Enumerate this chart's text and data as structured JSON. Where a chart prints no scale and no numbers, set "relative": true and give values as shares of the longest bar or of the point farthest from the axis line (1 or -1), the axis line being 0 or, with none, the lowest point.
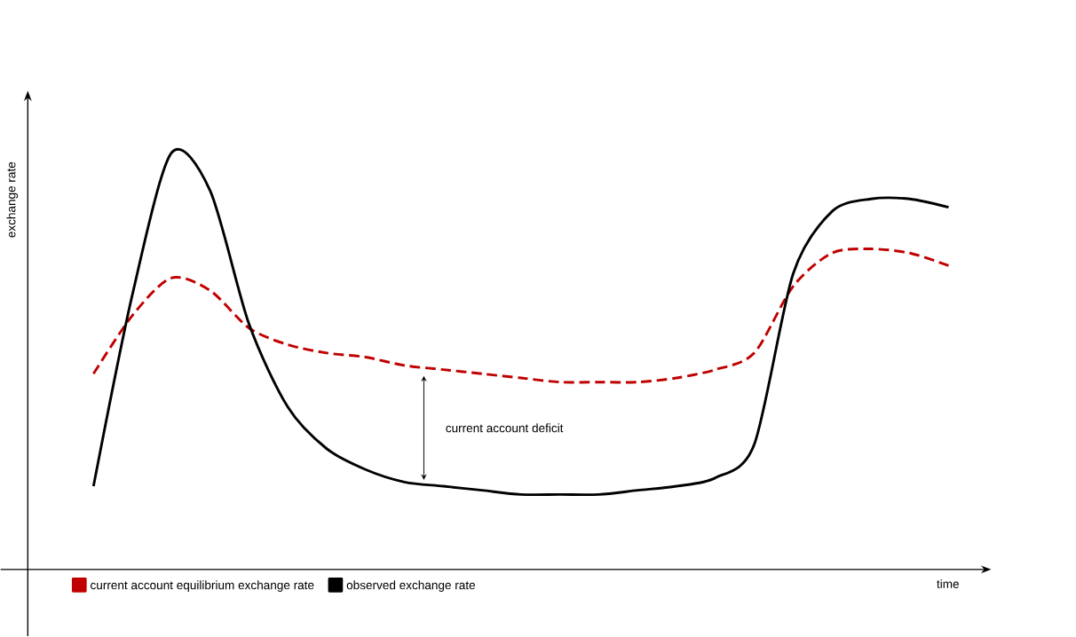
{
  "chart_data": {
    "type": "line",
    "relative": true,
    "xlabel": "time",
    "ylabel": "exchange rate",
    "legend": "bottom",
    "marker": "none",
    "annotations": [
      "current account deficit"
    ],
    "categories": [
      null,
      null,
      null,
      null,
      null,
      null,
      null,
      null,
      null,
      null,
      null,
      null,
      null,
      null,
      null,
      null,
      null,
      null,
      null,
      null,
      null,
      null,
      null
    ],
    "series": [
      {
        "name": "current account equilibrium exchange rate",
        "color": "#c00000",
        "line_style": "dashed",
        "values": [
          0.47,
          0.61,
          0.7,
          0.67,
          0.58,
          0.54,
          0.52,
          0.51,
          0.49,
          0.48,
          0.47,
          0.46,
          0.45,
          0.45,
          0.45,
          0.46,
          0.48,
          0.52,
          0.68,
          0.76,
          0.77,
          0.76,
          0.73
        ]
      },
      {
        "name": "observed exchange rate",
        "color": "#000000",
        "line_style": "solid",
        "values": [
          0.2,
          0.66,
          1.0,
          0.91,
          0.59,
          0.39,
          0.29,
          0.24,
          0.21,
          0.2,
          0.19,
          0.18,
          0.18,
          0.18,
          0.19,
          0.2,
          0.22,
          0.3,
          0.71,
          0.86,
          0.89,
          0.89,
          0.87
        ]
      }
    ]
  }
}
